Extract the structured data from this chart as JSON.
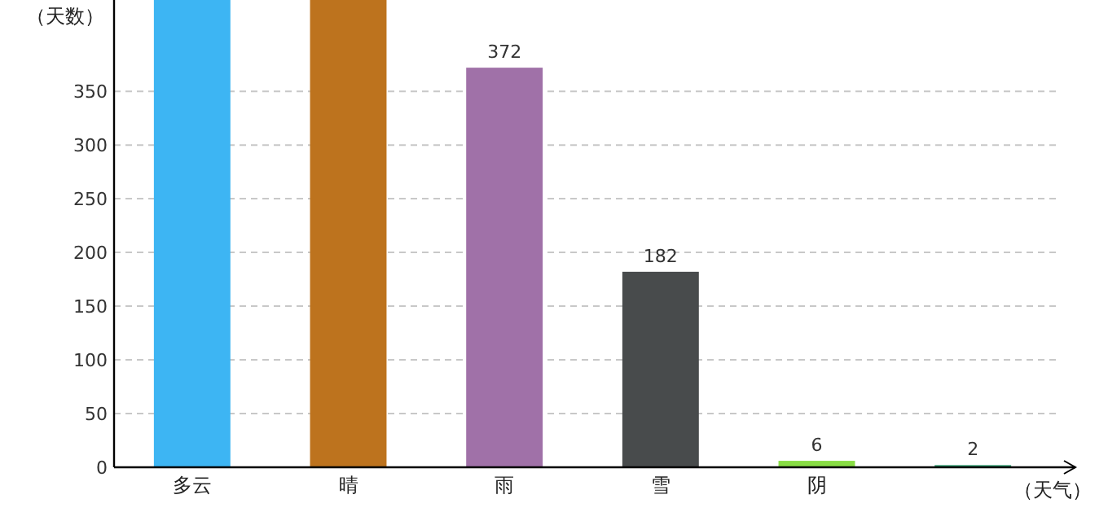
{
  "chart_data": {
    "type": "bar",
    "categories": [
      "多云",
      "晴",
      "雨",
      "雪",
      "阴",
      null
    ],
    "values": [
      435,
      435,
      372,
      182,
      6,
      2
    ],
    "value_labels": [
      null,
      null,
      "372",
      "182",
      "6",
      "2"
    ],
    "colors": [
      "#3db5f3",
      "#bd731e",
      "#a071a8",
      "#484b4c",
      "#88dd44",
      "#2e9a6e"
    ],
    "ylabel": "（天数）",
    "xlabel": "（天气）",
    "ylim": [
      0,
      435
    ],
    "yticks": [
      0,
      50,
      100,
      150,
      200,
      250,
      300,
      350
    ],
    "grid": "y"
  }
}
